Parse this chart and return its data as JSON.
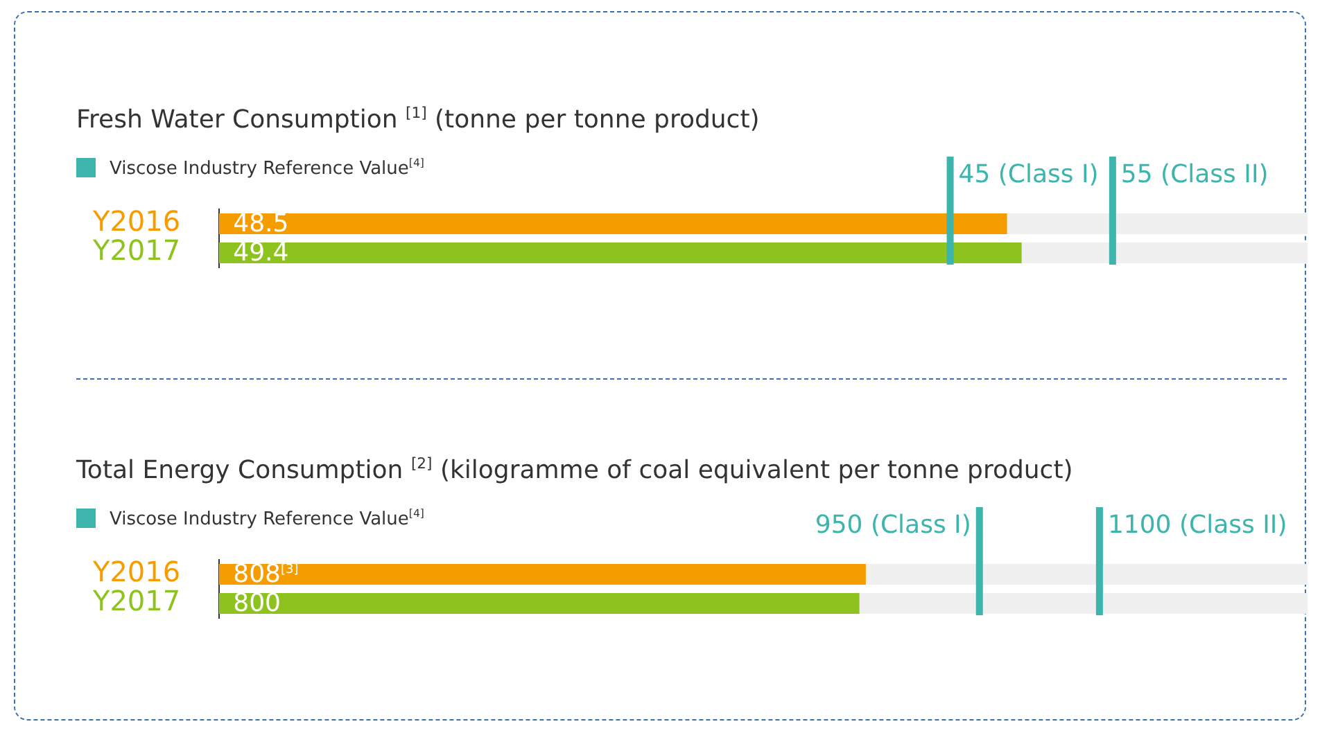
{
  "chart_data": [
    {
      "type": "bar",
      "orientation": "horizontal",
      "title": "Fresh Water Consumption $^{[1]}$ (tonne per tonne product)",
      "annotations": [
        "Viscose Industry Reference Value$^{[4]}$"
      ],
      "categories": [
        "Y2016",
        "Y2017"
      ],
      "values": [
        48.5,
        49.4
      ],
      "colors": [
        "#f59c00",
        "#8dc21f"
      ],
      "value_labels": [
        "48.5",
        "49.4"
      ],
      "xlim": [
        0,
        67
      ],
      "tick_labels": "y",
      "ref_lines": [
        {
          "axis": "x",
          "value": 45,
          "label": "45 (Class I)",
          "color": "#3db5ad"
        },
        {
          "axis": "x",
          "value": 55,
          "label": "55 (Class II)",
          "color": "#3db5ad"
        }
      ]
    },
    {
      "type": "bar",
      "orientation": "horizontal",
      "title": "Total Energy Consumption $^{[2]}$ (kilogramme of coal equivalent per tonne product)",
      "annotations": [
        "Viscose Industry Reference Value$^{[4]}$"
      ],
      "categories": [
        "Y2016",
        "Y2017"
      ],
      "values": [
        808,
        800
      ],
      "colors": [
        "#f59c00",
        "#8dc21f"
      ],
      "value_labels": [
        "808$^{[3]}$",
        "800"
      ],
      "xlim": [
        0,
        1360
      ],
      "tick_labels": "y",
      "ref_lines": [
        {
          "axis": "x",
          "value": 950,
          "label": "950 (Class I)",
          "color": "#3db5ad"
        },
        {
          "axis": "x",
          "value": 1100,
          "label": "1100 (Class II)",
          "color": "#3db5ad"
        }
      ]
    }
  ]
}
